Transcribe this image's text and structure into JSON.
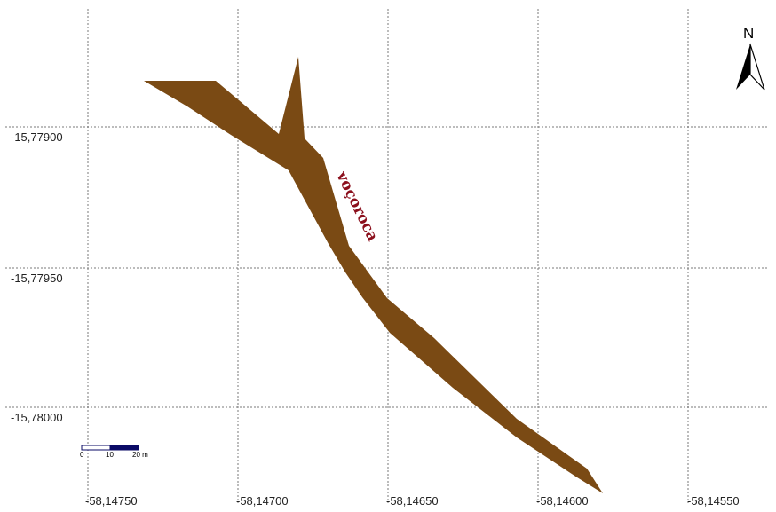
{
  "map": {
    "colors": {
      "background": "#ffffff",
      "grid": "#7a7a7a",
      "feature_fill": "#7a4a14",
      "feature_label": "#8b0f1c",
      "scale_bar": "#0a0a66"
    },
    "grid": {
      "longitudes": [
        "-58,14750",
        "-58,14700",
        "-58,14650",
        "-58,14600",
        "-58,14550"
      ],
      "latitudes": [
        "-15,77900",
        "-15,77950",
        "-15,78000"
      ]
    },
    "feature": {
      "label": "voçoroca"
    },
    "north_arrow": {
      "letter": "N",
      "icon": "north-arrow-icon"
    },
    "scale_bar": {
      "labels": [
        "0",
        "10",
        "20 m"
      ]
    }
  }
}
